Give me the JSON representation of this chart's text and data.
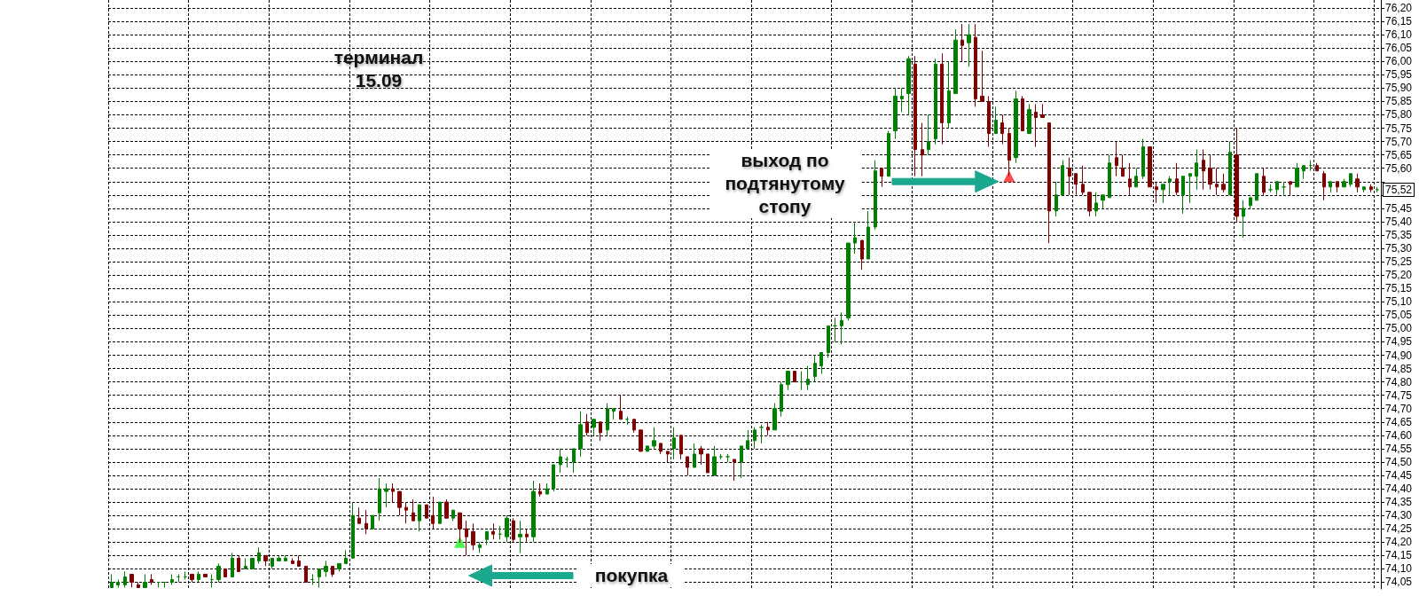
{
  "chart_data": {
    "type": "candlestick",
    "title": "терминал",
    "subtitle": "15.09",
    "categories": [
      null,
      null,
      null,
      null,
      null,
      null,
      null,
      null,
      null,
      null,
      null,
      null,
      null,
      null,
      null,
      null,
      null,
      null,
      null,
      null,
      null,
      null,
      null,
      null,
      null,
      null,
      null,
      null,
      null,
      null,
      null,
      null,
      null,
      null,
      null,
      null,
      null,
      null,
      null,
      null,
      null,
      null,
      null,
      null,
      null,
      null,
      null,
      null,
      null,
      null,
      null,
      null,
      null,
      null,
      null,
      null,
      null,
      null,
      null,
      null,
      null,
      null,
      null,
      null,
      null,
      null,
      null,
      null,
      null,
      null,
      null,
      null,
      null,
      null,
      null,
      null,
      null,
      null,
      null,
      null,
      null,
      null,
      null,
      null,
      null,
      null,
      null,
      null,
      null,
      null,
      null,
      null,
      null,
      null,
      null,
      null,
      null,
      null,
      null,
      null,
      null,
      null,
      null,
      null,
      null,
      null,
      null,
      null,
      null,
      null,
      null,
      null,
      null,
      null,
      null,
      null,
      null,
      null,
      null,
      null,
      null,
      null,
      null,
      null,
      null,
      null,
      null,
      null,
      null,
      null,
      null,
      null,
      null,
      null,
      null,
      null,
      null,
      null,
      null,
      null,
      null,
      null,
      null,
      null,
      null,
      null,
      null,
      null,
      null,
      null,
      null,
      null,
      null,
      null,
      null,
      null,
      null,
      null,
      null,
      null,
      null,
      null,
      null,
      null,
      null,
      null,
      null,
      null,
      null,
      null,
      null,
      null,
      null,
      null,
      null,
      null,
      null,
      null,
      null,
      null,
      null,
      null,
      null,
      null,
      null,
      null,
      null,
      null,
      null,
      null
    ],
    "series": [
      {
        "ohlc": [
          [
            74.03,
            74.08,
            74.03,
            74.05
          ],
          [
            74.04,
            74.06,
            74.03,
            74.05
          ],
          [
            74.04,
            74.09,
            74.03,
            74.07
          ],
          [
            74.08,
            74.08,
            74.03,
            74.05
          ],
          [
            74.04,
            74.05,
            74.03,
            74.03
          ],
          [
            74.03,
            74.08,
            74.03,
            74.05
          ],
          [
            74.06,
            74.08,
            74.04,
            74.05
          ],
          [
            74.05,
            74.05,
            74.03,
            74.05
          ],
          [
            74.05,
            74.05,
            74.03,
            74.05
          ],
          [
            74.05,
            74.08,
            74.04,
            74.06
          ],
          [
            74.07,
            74.08,
            74.05,
            74.07
          ],
          [
            74.07,
            74.09,
            74.06,
            74.07
          ],
          [
            74.08,
            74.08,
            74.05,
            74.06
          ],
          [
            74.06,
            74.09,
            74.05,
            74.08
          ],
          [
            74.08,
            74.08,
            74.07,
            74.07
          ],
          [
            74.06,
            74.08,
            74.03,
            74.06
          ],
          [
            74.06,
            74.12,
            74.05,
            74.11
          ],
          [
            74.1,
            74.1,
            74.07,
            74.07
          ],
          [
            74.07,
            74.16,
            74.07,
            74.14
          ],
          [
            74.14,
            74.15,
            74.09,
            74.09
          ],
          [
            74.1,
            74.14,
            74.1,
            74.11
          ],
          [
            74.1,
            74.14,
            74.1,
            74.14
          ],
          [
            74.13,
            74.18,
            74.12,
            74.16
          ],
          [
            74.15,
            74.15,
            74.11,
            74.13
          ],
          [
            74.11,
            74.14,
            74.1,
            74.14
          ],
          [
            74.13,
            74.15,
            74.13,
            74.14
          ],
          [
            74.13,
            74.15,
            74.13,
            74.14
          ],
          [
            74.13,
            74.14,
            74.12,
            74.12
          ],
          [
            74.13,
            74.15,
            74.11,
            74.11
          ],
          [
            74.11,
            74.11,
            74.05,
            74.05
          ],
          [
            74.06,
            74.08,
            74.04,
            74.06
          ],
          [
            74.07,
            74.1,
            74.03,
            74.1
          ],
          [
            74.09,
            74.13,
            74.07,
            74.11
          ],
          [
            74.11,
            74.11,
            74.07,
            74.08
          ],
          [
            74.1,
            74.12,
            74.09,
            74.12
          ],
          [
            74.12,
            74.17,
            74.12,
            74.14
          ],
          [
            74.14,
            74.35,
            74.14,
            74.3
          ],
          [
            74.29,
            74.33,
            74.27,
            74.27
          ],
          [
            74.27,
            74.32,
            74.23,
            74.25
          ],
          [
            74.25,
            74.3,
            74.25,
            74.3
          ],
          [
            74.31,
            74.44,
            74.28,
            74.4
          ],
          [
            74.39,
            74.42,
            74.33,
            74.4
          ],
          [
            74.4,
            74.42,
            74.35,
            74.39
          ],
          [
            74.39,
            74.39,
            74.3,
            74.33
          ],
          [
            74.33,
            74.35,
            74.27,
            74.32
          ],
          [
            74.31,
            74.36,
            74.28,
            74.28
          ],
          [
            74.28,
            74.34,
            74.24,
            74.34
          ],
          [
            74.34,
            74.34,
            74.29,
            74.29
          ],
          [
            74.3,
            74.37,
            74.25,
            74.27
          ],
          [
            74.27,
            74.35,
            74.27,
            74.35
          ],
          [
            74.35,
            74.36,
            74.29,
            74.29
          ],
          [
            74.29,
            74.32,
            74.28,
            74.32
          ],
          [
            74.31,
            74.31,
            74.2,
            74.25
          ],
          [
            74.25,
            74.28,
            74.15,
            74.22
          ],
          [
            74.24,
            74.27,
            74.17,
            74.19
          ],
          [
            74.18,
            74.2,
            74.16,
            74.19
          ],
          [
            74.21,
            74.24,
            74.19,
            74.24
          ],
          [
            74.24,
            74.27,
            74.21,
            74.23
          ],
          [
            74.23,
            74.26,
            74.21,
            74.23
          ],
          [
            74.22,
            74.3,
            74.2,
            74.29
          ],
          [
            74.28,
            74.29,
            74.2,
            74.21
          ],
          [
            74.22,
            74.28,
            74.16,
            74.23
          ],
          [
            74.23,
            74.25,
            74.2,
            74.22
          ],
          [
            74.22,
            74.43,
            74.2,
            74.39
          ],
          [
            74.39,
            74.42,
            74.37,
            74.38
          ],
          [
            74.38,
            74.42,
            74.38,
            74.4
          ],
          [
            74.4,
            74.49,
            74.39,
            74.49
          ],
          [
            74.49,
            74.55,
            74.46,
            74.52
          ],
          [
            74.51,
            74.52,
            74.48,
            74.51
          ],
          [
            74.5,
            74.55,
            74.46,
            74.55
          ],
          [
            74.55,
            74.69,
            74.52,
            74.64
          ],
          [
            74.65,
            74.68,
            74.6,
            74.61
          ],
          [
            74.63,
            74.66,
            74.6,
            74.66
          ],
          [
            74.65,
            74.65,
            74.58,
            74.61
          ],
          [
            74.62,
            74.72,
            74.6,
            74.7
          ],
          [
            74.69,
            74.7,
            74.66,
            74.7
          ],
          [
            74.69,
            74.75,
            74.66,
            74.66
          ],
          [
            74.66,
            74.67,
            74.64,
            74.66
          ],
          [
            74.66,
            74.66,
            74.61,
            74.62
          ],
          [
            74.62,
            74.62,
            74.54,
            74.54
          ],
          [
            74.54,
            74.56,
            74.54,
            74.56
          ],
          [
            74.56,
            74.63,
            74.55,
            74.58
          ],
          [
            74.57,
            74.57,
            74.53,
            74.54
          ],
          [
            74.54,
            74.54,
            74.5,
            74.53
          ],
          [
            74.55,
            74.63,
            74.51,
            74.59
          ],
          [
            74.6,
            74.6,
            74.51,
            74.53
          ],
          [
            74.52,
            74.52,
            74.45,
            74.48
          ],
          [
            74.48,
            74.57,
            74.48,
            74.53
          ],
          [
            74.55,
            74.56,
            74.49,
            74.53
          ],
          [
            74.53,
            74.53,
            74.46,
            74.46
          ],
          [
            74.45,
            74.56,
            74.45,
            74.52
          ],
          [
            74.52,
            74.53,
            74.51,
            74.52
          ],
          [
            74.52,
            74.53,
            74.5,
            74.52
          ],
          [
            74.51,
            74.51,
            74.43,
            74.5
          ],
          [
            74.5,
            74.56,
            74.44,
            74.56
          ],
          [
            74.55,
            74.62,
            74.55,
            74.58
          ],
          [
            74.58,
            74.63,
            74.55,
            74.62
          ],
          [
            74.63,
            74.64,
            74.57,
            74.63
          ],
          [
            74.63,
            74.65,
            74.6,
            74.62
          ],
          [
            74.62,
            74.72,
            74.62,
            74.7
          ],
          [
            74.69,
            74.8,
            74.67,
            74.79
          ],
          [
            74.79,
            74.84,
            74.77,
            74.84
          ],
          [
            74.84,
            74.84,
            74.8,
            74.8
          ],
          [
            74.8,
            74.84,
            74.77,
            74.8
          ],
          [
            74.79,
            74.86,
            74.77,
            74.81
          ],
          [
            74.82,
            74.9,
            74.8,
            74.87
          ],
          [
            74.86,
            74.91,
            74.83,
            74.91
          ],
          [
            74.91,
            75.01,
            74.89,
            75.01
          ],
          [
            75.01,
            75.04,
            74.95,
            75.01
          ],
          [
            75.01,
            75.06,
            74.94,
            75.03
          ],
          [
            75.04,
            75.32,
            75.03,
            75.32
          ],
          [
            75.32,
            75.4,
            75.28,
            75.34
          ],
          [
            75.33,
            75.33,
            75.22,
            75.26
          ],
          [
            75.26,
            75.44,
            75.26,
            75.38
          ],
          [
            75.38,
            75.63,
            75.37,
            75.59
          ],
          [
            75.6,
            75.6,
            75.53,
            75.57
          ],
          [
            75.57,
            75.74,
            75.57,
            75.73
          ],
          [
            75.74,
            75.9,
            75.71,
            75.87
          ],
          [
            75.86,
            75.9,
            75.81,
            75.87
          ],
          [
            75.88,
            76.02,
            75.8,
            76.01
          ],
          [
            75.99,
            76.02,
            75.57,
            75.67
          ],
          [
            75.67,
            75.77,
            75.57,
            75.65
          ],
          [
            75.67,
            75.8,
            75.65,
            75.7
          ],
          [
            75.71,
            76.01,
            75.69,
            75.99
          ],
          [
            75.99,
            76.03,
            75.69,
            75.77
          ],
          [
            75.77,
            76.0,
            75.75,
            75.89
          ],
          [
            75.88,
            76.12,
            75.88,
            76.08
          ],
          [
            76.08,
            76.14,
            76.0,
            76.06
          ],
          [
            76.07,
            76.14,
            75.98,
            76.1
          ],
          [
            76.09,
            76.14,
            75.83,
            75.86
          ],
          [
            75.87,
            76.04,
            75.85,
            75.85
          ],
          [
            75.85,
            75.87,
            75.68,
            75.73
          ],
          [
            75.73,
            75.83,
            75.73,
            75.78
          ],
          [
            75.77,
            75.8,
            75.69,
            75.73
          ],
          [
            75.73,
            75.75,
            75.57,
            75.63
          ],
          [
            75.64,
            75.89,
            75.62,
            75.86
          ],
          [
            75.86,
            75.87,
            75.74,
            75.74
          ],
          [
            75.73,
            75.84,
            75.73,
            75.82
          ],
          [
            75.81,
            75.84,
            75.68,
            75.79
          ],
          [
            75.8,
            75.84,
            75.79,
            75.79
          ],
          [
            75.77,
            75.77,
            75.32,
            75.44
          ],
          [
            75.44,
            75.55,
            75.42,
            75.5
          ],
          [
            75.5,
            75.63,
            75.5,
            75.61
          ],
          [
            75.6,
            75.64,
            75.5,
            75.57
          ],
          [
            75.58,
            75.58,
            75.5,
            75.54
          ],
          [
            75.54,
            75.61,
            75.5,
            75.51
          ],
          [
            75.51,
            75.51,
            75.42,
            75.44
          ],
          [
            75.44,
            75.51,
            75.42,
            75.47
          ],
          [
            75.48,
            75.5,
            75.45,
            75.5
          ],
          [
            75.49,
            75.65,
            75.49,
            75.62
          ],
          [
            75.64,
            75.7,
            75.57,
            75.61
          ],
          [
            75.6,
            75.65,
            75.57,
            75.57
          ],
          [
            75.56,
            75.62,
            75.5,
            75.53
          ],
          [
            75.53,
            75.6,
            75.53,
            75.57
          ],
          [
            75.57,
            75.71,
            75.56,
            75.68
          ],
          [
            75.68,
            75.68,
            75.53,
            75.53
          ],
          [
            75.53,
            75.55,
            75.47,
            75.52
          ],
          [
            75.52,
            75.54,
            75.47,
            75.54
          ],
          [
            75.55,
            75.57,
            75.5,
            75.56
          ],
          [
            75.56,
            75.62,
            75.5,
            75.51
          ],
          [
            75.5,
            75.57,
            75.43,
            75.57
          ],
          [
            75.57,
            75.58,
            75.47,
            75.58
          ],
          [
            75.57,
            75.67,
            75.52,
            75.62
          ],
          [
            75.63,
            75.67,
            75.52,
            75.59
          ],
          [
            75.6,
            75.65,
            75.52,
            75.54
          ],
          [
            75.54,
            75.6,
            75.5,
            75.53
          ],
          [
            75.54,
            75.58,
            75.51,
            75.52
          ],
          [
            75.5,
            75.7,
            75.5,
            75.66
          ],
          [
            75.65,
            75.75,
            75.4,
            75.42
          ],
          [
            75.42,
            75.48,
            75.34,
            75.45
          ],
          [
            75.46,
            75.49,
            75.45,
            75.49
          ],
          [
            75.48,
            75.58,
            75.48,
            75.58
          ],
          [
            75.57,
            75.6,
            75.5,
            75.51
          ],
          [
            75.52,
            75.54,
            75.51,
            75.52
          ],
          [
            75.52,
            75.55,
            75.5,
            75.55
          ],
          [
            75.53,
            75.55,
            75.5,
            75.53
          ],
          [
            75.55,
            75.55,
            75.5,
            75.54
          ],
          [
            75.53,
            75.62,
            75.53,
            75.6
          ],
          [
            75.59,
            75.61,
            75.56,
            75.61
          ],
          [
            75.61,
            75.63,
            75.59,
            75.61
          ],
          [
            75.61,
            75.62,
            75.59,
            75.59
          ],
          [
            75.58,
            75.59,
            75.48,
            75.53
          ],
          [
            75.53,
            75.55,
            75.51,
            75.55
          ],
          [
            75.55,
            75.55,
            75.51,
            75.53
          ],
          [
            75.53,
            75.56,
            75.53,
            75.55
          ],
          [
            75.54,
            75.58,
            75.53,
            75.58
          ],
          [
            75.56,
            75.58,
            75.51,
            75.53
          ],
          [
            75.52,
            75.53,
            75.51,
            75.53
          ],
          [
            75.53,
            75.54,
            75.51,
            75.52
          ],
          [
            75.52,
            75.53,
            75.51,
            75.52
          ]
        ],
        "colors": [
          "#008000",
          "#008000",
          "#008000",
          "#800000",
          "#800000",
          "#008000",
          "#800000",
          "#008000",
          "#008000",
          "#008000",
          "#008000",
          "#008000",
          "#800000",
          "#008000",
          "#800000",
          "#008000",
          "#008000",
          "#800000",
          "#008000",
          "#800000",
          "#008000",
          "#008000",
          "#008000",
          "#800000",
          "#008000",
          "#008000",
          "#008000",
          "#800000",
          "#800000",
          "#800000",
          "#008000",
          "#008000",
          "#008000",
          "#800000",
          "#008000",
          "#008000",
          "#008000",
          "#800000",
          "#800000",
          "#008000",
          "#008000",
          "#008000",
          "#800000",
          "#800000",
          "#800000",
          "#800000",
          "#008000",
          "#800000",
          "#800000",
          "#008000",
          "#800000",
          "#008000",
          "#800000",
          "#800000",
          "#800000",
          "#008000",
          "#008000",
          "#800000",
          "#008000",
          "#008000",
          "#800000",
          "#008000",
          "#800000",
          "#008000",
          "#800000",
          "#008000",
          "#008000",
          "#008000",
          "#008000",
          "#008000",
          "#008000",
          "#800000",
          "#008000",
          "#800000",
          "#008000",
          "#008000",
          "#800000",
          "#008000",
          "#800000",
          "#800000",
          "#008000",
          "#008000",
          "#800000",
          "#800000",
          "#008000",
          "#800000",
          "#800000",
          "#008000",
          "#800000",
          "#800000",
          "#008000",
          "#008000",
          "#008000",
          "#800000",
          "#008000",
          "#008000",
          "#008000",
          "#008000",
          "#800000",
          "#008000",
          "#008000",
          "#008000",
          "#800000",
          "#008000",
          "#008000",
          "#008000",
          "#008000",
          "#008000",
          "#008000",
          "#008000",
          "#008000",
          "#008000",
          "#800000",
          "#008000",
          "#008000",
          "#800000",
          "#008000",
          "#008000",
          "#008000",
          "#008000",
          "#800000",
          "#800000",
          "#008000",
          "#008000",
          "#800000",
          "#008000",
          "#008000",
          "#800000",
          "#008000",
          "#800000",
          "#800000",
          "#800000",
          "#008000",
          "#800000",
          "#800000",
          "#008000",
          "#800000",
          "#008000",
          "#800000",
          "#800000",
          "#800000",
          "#008000",
          "#008000",
          "#800000",
          "#800000",
          "#800000",
          "#800000",
          "#008000",
          "#008000",
          "#008000",
          "#800000",
          "#800000",
          "#800000",
          "#008000",
          "#008000",
          "#800000",
          "#800000",
          "#008000",
          "#008000",
          "#800000",
          "#008000",
          "#008000",
          "#008000",
          "#800000",
          "#800000",
          "#800000",
          "#800000",
          "#008000",
          "#800000",
          "#008000",
          "#008000",
          "#008000",
          "#800000",
          "#008000",
          "#008000",
          "#008000",
          "#800000",
          "#008000",
          "#008000",
          "#008000",
          "#800000",
          "#800000",
          "#008000",
          "#800000",
          "#008000",
          "#008000",
          "#800000",
          "#008000",
          "#800000",
          "#008000"
        ]
      },
      {
        "type": "scatter",
        "color": "#22ee22",
        "values": [
          null,
          null,
          null,
          null,
          null,
          null,
          null,
          null,
          null,
          null,
          null,
          null,
          null,
          null,
          null,
          null,
          null,
          null,
          null,
          null,
          null,
          null,
          null,
          null,
          null,
          null,
          null,
          null,
          null,
          null,
          null,
          null,
          null,
          null,
          null,
          null,
          null,
          null,
          null,
          null,
          null,
          null,
          null,
          null,
          null,
          null,
          null,
          null,
          null,
          null,
          null,
          null,
          74.2,
          null,
          null,
          null,
          null,
          null,
          null,
          null,
          null,
          null,
          null,
          null,
          null,
          null,
          null,
          null,
          null,
          null,
          null,
          null,
          null,
          null,
          null,
          null,
          null,
          null,
          null,
          null,
          null,
          null,
          null,
          null,
          null,
          null,
          null,
          null,
          null,
          null,
          null,
          null,
          null,
          null,
          null,
          null,
          null,
          null,
          null,
          null,
          null,
          null,
          null,
          null,
          null,
          null,
          null,
          null,
          null,
          null,
          null,
          null,
          null,
          null,
          null,
          null,
          null,
          null,
          null,
          null,
          null,
          null,
          null,
          null,
          null,
          null,
          null,
          null,
          null,
          null,
          null,
          null,
          null,
          null,
          null,
          null,
          null,
          null,
          null,
          null,
          null,
          null,
          null,
          null,
          null,
          null,
          null,
          null,
          null,
          null,
          null,
          null,
          null,
          null,
          null,
          null,
          null,
          null,
          null,
          null,
          null,
          null,
          null,
          null,
          null,
          null,
          null,
          null,
          null,
          null,
          null,
          null,
          null,
          null,
          null,
          null,
          null,
          null,
          null,
          null,
          null,
          null,
          null,
          null,
          null,
          null,
          null,
          null,
          null,
          null
        ]
      },
      {
        "type": "scatter",
        "color": "#ff2020",
        "values": [
          null,
          null,
          null,
          null,
          null,
          null,
          null,
          null,
          null,
          null,
          null,
          null,
          null,
          null,
          null,
          null,
          null,
          null,
          null,
          null,
          null,
          null,
          null,
          null,
          null,
          null,
          null,
          null,
          null,
          null,
          null,
          null,
          null,
          null,
          null,
          null,
          null,
          null,
          null,
          null,
          null,
          null,
          null,
          null,
          null,
          null,
          null,
          null,
          null,
          null,
          null,
          null,
          null,
          null,
          null,
          null,
          null,
          null,
          null,
          null,
          null,
          null,
          null,
          null,
          null,
          null,
          null,
          null,
          null,
          null,
          null,
          null,
          null,
          null,
          null,
          null,
          null,
          null,
          null,
          null,
          null,
          null,
          null,
          null,
          null,
          null,
          null,
          null,
          null,
          null,
          null,
          null,
          null,
          null,
          null,
          null,
          null,
          null,
          null,
          null,
          null,
          null,
          null,
          null,
          null,
          null,
          null,
          null,
          null,
          null,
          null,
          null,
          null,
          null,
          null,
          null,
          null,
          null,
          null,
          null,
          null,
          null,
          null,
          null,
          null,
          null,
          null,
          null,
          null,
          null,
          null,
          null,
          null,
          null,
          75.57,
          null,
          null,
          null,
          null,
          null,
          null,
          null,
          null,
          null,
          null,
          null,
          null,
          null,
          null,
          null,
          null,
          null,
          null,
          null,
          null,
          null,
          null,
          null,
          null,
          null,
          null,
          null,
          null,
          null,
          null,
          null,
          null,
          null,
          null,
          null,
          null,
          null,
          null,
          null,
          null,
          null,
          null,
          null,
          null,
          null,
          null,
          null,
          null,
          null,
          null,
          null,
          null,
          null,
          null,
          null
        ]
      }
    ],
    "marker": "triangle",
    "grid": true,
    "ylim": [
      74.025,
      76.23
    ],
    "yticks": [
      {
        "value": 74.05,
        "label": "74,05"
      },
      {
        "value": 74.1,
        "label": "74,10"
      },
      {
        "value": 74.15,
        "label": "74,15"
      },
      {
        "value": 74.2,
        "label": "74,20"
      },
      {
        "value": 74.25,
        "label": "74,25"
      },
      {
        "value": 74.3,
        "label": "74,30"
      },
      {
        "value": 74.35,
        "label": "74,35"
      },
      {
        "value": 74.4,
        "label": "74,40"
      },
      {
        "value": 74.45,
        "label": "74,45"
      },
      {
        "value": 74.5,
        "label": "74,50"
      },
      {
        "value": 74.55,
        "label": "74,55"
      },
      {
        "value": 74.6,
        "label": "74,60"
      },
      {
        "value": 74.65,
        "label": "74,65"
      },
      {
        "value": 74.7,
        "label": "74,70"
      },
      {
        "value": 74.75,
        "label": "74,75"
      },
      {
        "value": 74.8,
        "label": "74,80"
      },
      {
        "value": 74.85,
        "label": "74,85"
      },
      {
        "value": 74.9,
        "label": "74,90"
      },
      {
        "value": 74.95,
        "label": "74,95"
      },
      {
        "value": 75.0,
        "label": "75,00"
      },
      {
        "value": 75.05,
        "label": "75,05"
      },
      {
        "value": 75.1,
        "label": "75,10"
      },
      {
        "value": 75.15,
        "label": "75,15"
      },
      {
        "value": 75.2,
        "label": "75,20"
      },
      {
        "value": 75.25,
        "label": "75,25"
      },
      {
        "value": 75.3,
        "label": "75,30"
      },
      {
        "value": 75.35,
        "label": "75,35"
      },
      {
        "value": 75.4,
        "label": "75,40"
      },
      {
        "value": 75.45,
        "label": "75,45"
      },
      {
        "value": 75.5,
        "label": null
      },
      {
        "value": 75.55,
        "label": null
      },
      {
        "value": 75.6,
        "label": "75,60"
      },
      {
        "value": 75.65,
        "label": "75,65"
      },
      {
        "value": 75.7,
        "label": "75,70"
      },
      {
        "value": 75.75,
        "label": "75,75"
      },
      {
        "value": 75.8,
        "label": "75,80"
      },
      {
        "value": 75.85,
        "label": "75,85"
      },
      {
        "value": 75.9,
        "label": "75,90"
      },
      {
        "value": 75.95,
        "label": "75,95"
      },
      {
        "value": 76.0,
        "label": "76,00"
      },
      {
        "value": 76.05,
        "label": "76,05"
      },
      {
        "value": 76.1,
        "label": "76,10"
      },
      {
        "value": 76.15,
        "label": "76,15"
      },
      {
        "value": 76.2,
        "label": "76,20"
      }
    ],
    "annotations": [
      "покупка",
      "выход по подтянутому стопу",
      {
        "text": "75,52",
        "y": 75.52
      }
    ]
  }
}
